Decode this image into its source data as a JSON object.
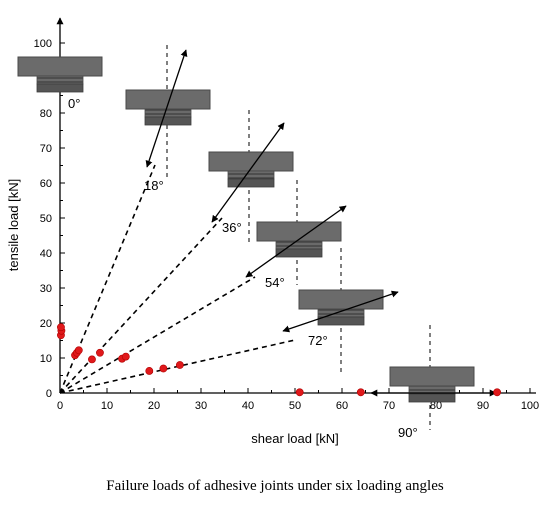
{
  "chart_data": {
    "type": "scatter",
    "title": "",
    "xlabel": "shear load [kN]",
    "ylabel": "tensile load [kN]",
    "xlim": [
      0,
      100
    ],
    "ylim": [
      0,
      100
    ],
    "x_ticks": [
      0,
      10,
      20,
      30,
      40,
      50,
      60,
      70,
      80,
      90,
      100
    ],
    "y_ticks": [
      0,
      10,
      20,
      30,
      40,
      50,
      60,
      70,
      80,
      90,
      100
    ],
    "x_tick_labels": [
      "0",
      "10",
      "20",
      "30",
      "40",
      "50",
      "60",
      "70",
      "80",
      "90",
      "100"
    ],
    "y_tick_labels": [
      "0",
      "10",
      "20",
      "30",
      "40",
      "50",
      "60",
      "70",
      "80",
      "90",
      "100"
    ],
    "point_color": "#e0191b",
    "points": [
      {
        "x": 0.2,
        "y": 16.5
      },
      {
        "x": 0.3,
        "y": 17.8
      },
      {
        "x": 0.2,
        "y": 18.8
      },
      {
        "x": 3.2,
        "y": 10.8
      },
      {
        "x": 3.6,
        "y": 11.5
      },
      {
        "x": 4.0,
        "y": 12.2
      },
      {
        "x": 6.8,
        "y": 9.6
      },
      {
        "x": 8.5,
        "y": 11.5
      },
      {
        "x": 13.2,
        "y": 9.8
      },
      {
        "x": 14.0,
        "y": 10.4
      },
      {
        "x": 19.0,
        "y": 6.3
      },
      {
        "x": 22.0,
        "y": 7.0
      },
      {
        "x": 25.5,
        "y": 8.0
      },
      {
        "x": 51.0,
        "y": 0.2
      },
      {
        "x": 64.0,
        "y": 0.2
      },
      {
        "x": 93.0,
        "y": 0.2
      }
    ],
    "loading_angles": [
      {
        "label": "0°",
        "angle_deg": 0
      },
      {
        "label": "18°",
        "angle_deg": 18
      },
      {
        "label": "36°",
        "angle_deg": 36
      },
      {
        "label": "54°",
        "angle_deg": 54
      },
      {
        "label": "72°",
        "angle_deg": 72
      },
      {
        "label": "90°",
        "angle_deg": 90
      }
    ]
  },
  "caption": "Failure loads of adhesive joints under six loading angles"
}
